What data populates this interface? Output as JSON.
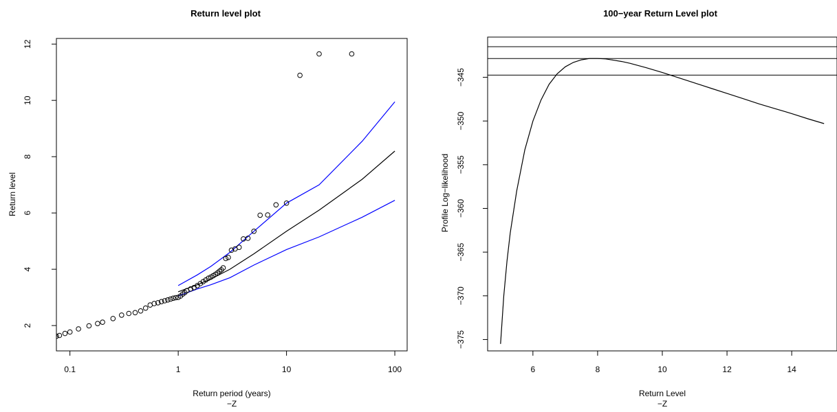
{
  "chart_data": [
    {
      "type": "line",
      "title": "Return level plot",
      "xlabel": "Return period (years)",
      "xsublabel": "−Z",
      "ylabel": "Return level",
      "xscale": "log",
      "xlim": [
        0.075,
        130
      ],
      "ylim": [
        1.1,
        12.2
      ],
      "xticks": [
        0.1,
        1,
        10,
        100
      ],
      "xtick_labels": [
        "0.1",
        "1",
        "10",
        "100"
      ],
      "yticks": [
        2,
        4,
        6,
        8,
        10,
        12
      ],
      "ytick_labels": [
        "2",
        "4",
        "6",
        "8",
        "10",
        "12"
      ],
      "grid": false,
      "series": [
        {
          "style": "line",
          "color": "#000000",
          "x": [
            1,
            1.5,
            2,
            3,
            5,
            10,
            20,
            50,
            100
          ],
          "y": [
            3.2,
            3.45,
            3.65,
            4.0,
            4.55,
            5.35,
            6.1,
            7.2,
            8.2
          ]
        },
        {
          "style": "line",
          "color": "#0000ff",
          "x": [
            1,
            1.5,
            2,
            3,
            5,
            10,
            20,
            50,
            100
          ],
          "y": [
            3.42,
            3.8,
            4.1,
            4.6,
            5.35,
            6.35,
            7.0,
            8.55,
            9.95
          ]
        },
        {
          "style": "line",
          "color": "#0000ff",
          "x": [
            1,
            1.5,
            2,
            3,
            5,
            10,
            20,
            50,
            100
          ],
          "y": [
            3.05,
            3.3,
            3.45,
            3.7,
            4.15,
            4.7,
            5.15,
            5.85,
            6.45
          ]
        },
        {
          "style": "points",
          "color": "#000000",
          "x": [
            0.075,
            0.08,
            0.09,
            0.1,
            0.12,
            0.15,
            0.18,
            0.2,
            0.25,
            0.3,
            0.35,
            0.4,
            0.45,
            0.5,
            0.55,
            0.6,
            0.65,
            0.7,
            0.75,
            0.8,
            0.85,
            0.9,
            0.95,
            1.0,
            1.05,
            1.1,
            1.15,
            1.2,
            1.3,
            1.4,
            1.5,
            1.6,
            1.7,
            1.8,
            1.9,
            2.0,
            2.1,
            2.2,
            2.3,
            2.4,
            2.5,
            2.6,
            2.75,
            2.9,
            3.1,
            3.35,
            3.65,
            4.0,
            4.4,
            5.0,
            5.7,
            6.7,
            8.0,
            10.0,
            13.3,
            20.0,
            40.0
          ],
          "y": [
            1.62,
            1.65,
            1.72,
            1.77,
            1.88,
            1.99,
            2.07,
            2.12,
            2.25,
            2.37,
            2.43,
            2.46,
            2.52,
            2.62,
            2.73,
            2.78,
            2.81,
            2.85,
            2.88,
            2.91,
            2.94,
            2.97,
            2.99,
            3.0,
            3.05,
            3.12,
            3.17,
            3.24,
            3.3,
            3.35,
            3.42,
            3.49,
            3.56,
            3.62,
            3.68,
            3.72,
            3.77,
            3.82,
            3.87,
            3.93,
            3.98,
            4.05,
            4.38,
            4.42,
            4.68,
            4.72,
            4.78,
            5.08,
            5.1,
            5.35,
            5.92,
            5.93,
            6.29,
            6.35,
            10.89,
            11.65,
            11.65
          ]
        }
      ]
    },
    {
      "type": "line",
      "title": "100−year Return Level plot",
      "xlabel": "Return Level",
      "xsublabel": "−Z",
      "ylabel": "Profile Log−likelihood",
      "xlim": [
        4.6,
        15.4
      ],
      "ylim": [
        -376.3,
        -340.4
      ],
      "xticks": [
        6,
        8,
        10,
        12,
        14
      ],
      "xtick_labels": [
        "6",
        "8",
        "10",
        "12",
        "14"
      ],
      "yticks": [
        -375,
        -370,
        -365,
        -360,
        -355,
        -350,
        -345
      ],
      "ytick_labels": [
        "−375",
        "−370",
        "−365",
        "−360",
        "−355",
        "−350",
        "−345"
      ],
      "grid": false,
      "hlines": [
        -341.5,
        -342.85,
        -344.75
      ],
      "series": [
        {
          "style": "line",
          "color": "#000000",
          "x": [
            5.0,
            5.1,
            5.2,
            5.3,
            5.5,
            5.75,
            6.0,
            6.25,
            6.5,
            6.75,
            7.0,
            7.25,
            7.5,
            7.75,
            8.0,
            8.25,
            8.5,
            8.75,
            9.0,
            9.5,
            10.0,
            10.5,
            11.0,
            11.5,
            12.0,
            12.5,
            13.0,
            13.5,
            14.0,
            14.5,
            15.0
          ],
          "y": [
            -375.5,
            -370.0,
            -366.0,
            -362.8,
            -358.0,
            -353.3,
            -350.0,
            -347.6,
            -345.8,
            -344.6,
            -343.8,
            -343.3,
            -343.0,
            -342.85,
            -342.85,
            -342.9,
            -343.05,
            -343.2,
            -343.4,
            -343.9,
            -344.45,
            -345.05,
            -345.65,
            -346.25,
            -346.85,
            -347.45,
            -348.05,
            -348.6,
            -349.15,
            -349.75,
            -350.3
          ]
        }
      ]
    }
  ]
}
